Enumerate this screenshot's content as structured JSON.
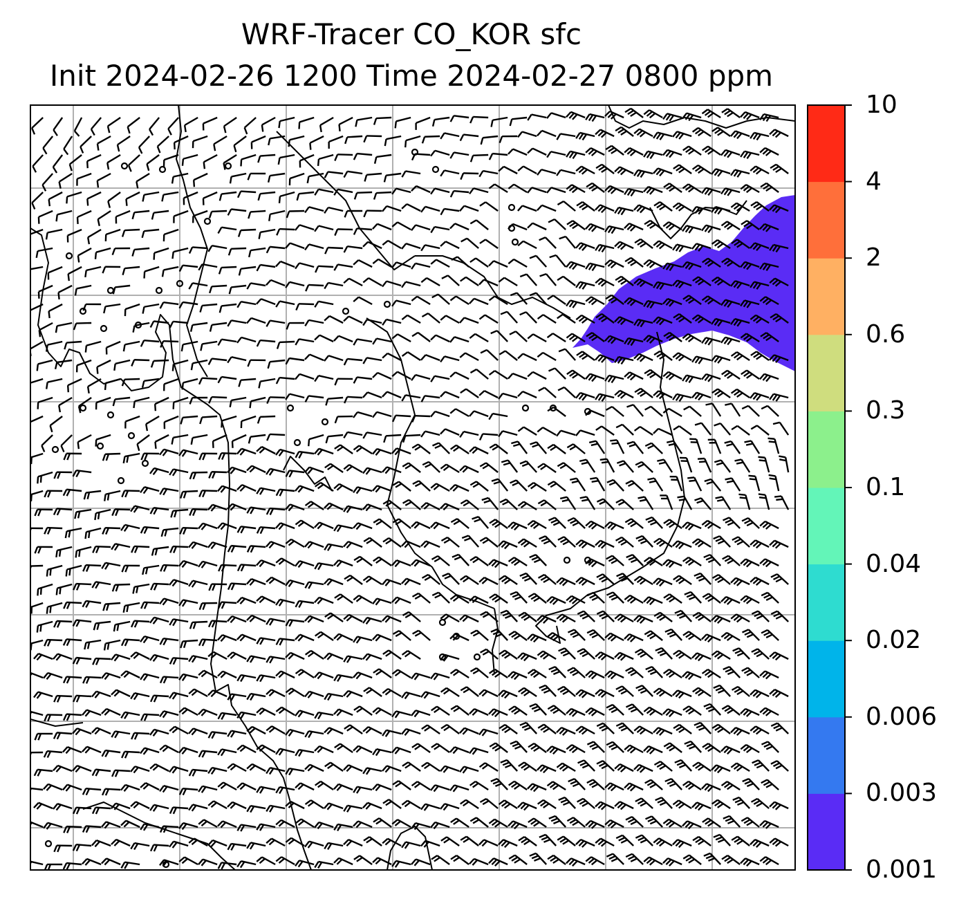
{
  "title": {
    "line1": "WRF-Tracer CO_KOR sfc",
    "line2": "Init 2024-02-26 1200 Time 2024-02-27 0800 ppm"
  },
  "colorbar": {
    "levels": [
      "0.001",
      "0.003",
      "0.006",
      "0.02",
      "0.04",
      "0.1",
      "0.3",
      "0.6",
      "2",
      "4",
      "10"
    ],
    "colors": [
      "#5a2cf5",
      "#3479f0",
      "#00b4ea",
      "#2edcd0",
      "#63f5b8",
      "#8cf08c",
      "#cfdd7e",
      "#ffb062",
      "#ff6f3a",
      "#ff2a16"
    ]
  },
  "map": {
    "tracer_fill_color": "#5a2cf5",
    "tracer_level": "0.001-0.003 ppm",
    "gridline_color": "#b0b0b0",
    "coastline_color": "#000000",
    "wind_barbs": "surface wind barbs"
  }
}
